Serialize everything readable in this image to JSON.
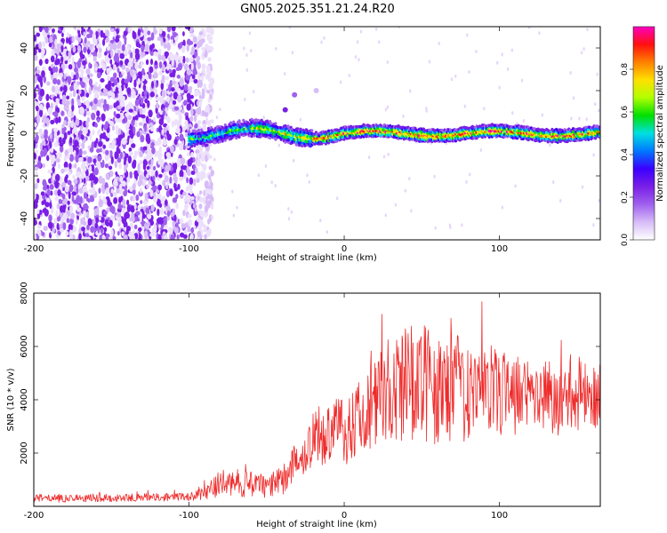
{
  "title": "GN05.2025.351.21.24.R20",
  "colors": {
    "snr_line": "#ef2b2b",
    "background": "#ffffff",
    "axis": "#000000",
    "colormap": [
      "#ffffff",
      "#d7bcf7",
      "#a060ee",
      "#7a1fe6",
      "#3b00ff",
      "#0078ff",
      "#00e0e0",
      "#00e000",
      "#b0ff00",
      "#ffe000",
      "#ff8000",
      "#ff1010",
      "#ff00c0"
    ]
  },
  "chart_data": [
    {
      "type": "heatmap",
      "name": "spectrogram",
      "xlabel": "Height of straight line (km)",
      "ylabel": "Frequency (Hz)",
      "xlim": [
        -200,
        165
      ],
      "ylim": [
        -50,
        50
      ],
      "xticks": [
        -200,
        -100,
        0,
        100
      ],
      "yticks": [
        -40,
        -20,
        0,
        20,
        40
      ],
      "colorbar": {
        "label": "Normalized spectral amplitude",
        "range": [
          0,
          1
        ],
        "ticks": [
          "0.0",
          "0.2",
          "0.4",
          "0.6",
          "0.8"
        ]
      },
      "features": {
        "noise_region_x": [
          -200,
          -85
        ],
        "carrier_freq_hz": 0,
        "carrier_start_x": -100
      }
    },
    {
      "type": "line",
      "name": "snr",
      "xlabel": "Height of straight line (km)",
      "ylabel": "SNR (10 * v/v)",
      "xlim": [
        -200,
        165
      ],
      "ylim": [
        0,
        8000
      ],
      "xticks": [
        -200,
        -100,
        0,
        100
      ],
      "yticks": [
        2000,
        4000,
        6000,
        8000
      ],
      "series": [
        {
          "name": "SNR",
          "x": [
            -200,
            -180,
            -160,
            -140,
            -120,
            -100,
            -90,
            -80,
            -70,
            -60,
            -50,
            -40,
            -30,
            -20,
            -10,
            0,
            10,
            20,
            30,
            40,
            50,
            60,
            70,
            80,
            90,
            100,
            110,
            120,
            130,
            140,
            150,
            160,
            165
          ],
          "y": [
            300,
            300,
            320,
            330,
            340,
            350,
            500,
            850,
            900,
            800,
            750,
            950,
            1800,
            2500,
            2900,
            2800,
            3500,
            4000,
            4300,
            4500,
            4600,
            4400,
            4500,
            4300,
            4600,
            4200,
            4100,
            4300,
            4200,
            4000,
            4100,
            4200,
            4300
          ],
          "spread": [
            150,
            150,
            150,
            150,
            150,
            150,
            250,
            500,
            500,
            500,
            450,
            550,
            800,
            1000,
            1300,
            1300,
            1500,
            1800,
            2000,
            2200,
            2300,
            2100,
            2000,
            1900,
            1700,
            1600,
            1600,
            1500,
            1400,
            1400,
            1300,
            1300,
            1300
          ]
        }
      ]
    }
  ]
}
